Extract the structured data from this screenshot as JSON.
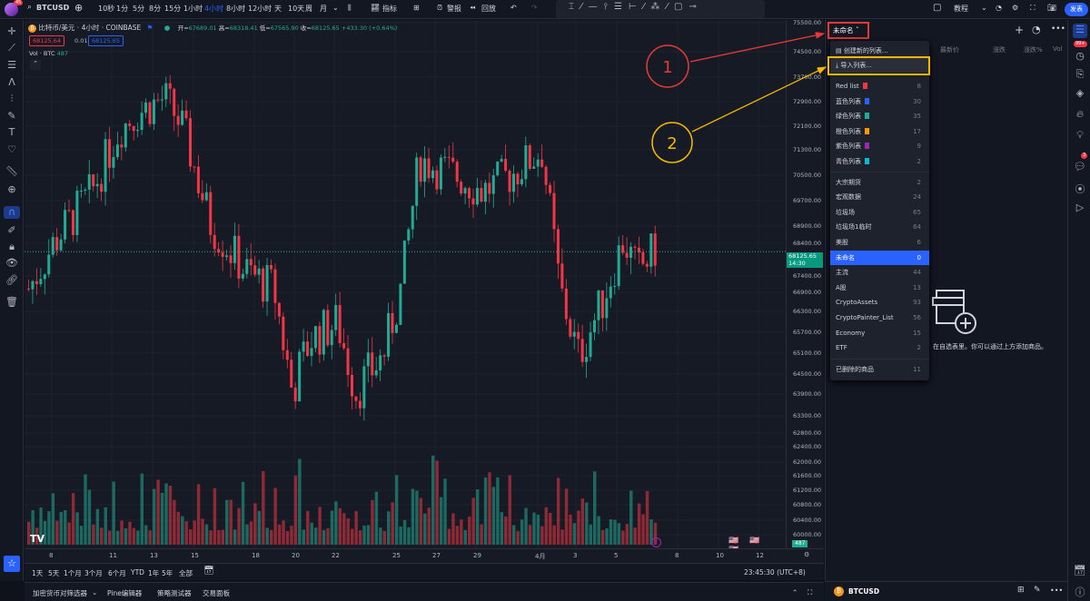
{
  "topbar": {
    "symbol": "BTCUSD",
    "avatar_badge": "45",
    "intervals": [
      "10秒",
      "1分",
      "5分",
      "8分",
      "15分",
      "1小时",
      "4小时",
      "8小时",
      "12小时",
      "天",
      "10天",
      "周",
      "月"
    ],
    "active_interval": "4小时",
    "indicators": "指标",
    "alerts": "警报",
    "replay": "回放",
    "tutorial": "教程",
    "publish": "发表"
  },
  "legend": {
    "title": "比特币/美元 · 4小时 · COINBASE",
    "open_label": "开=",
    "open": "67689.01",
    "high_label": "高=",
    "high": "68318.41",
    "low_label": "低=",
    "low": "67565.90",
    "close_label": "收=",
    "close": "68125.65",
    "change": "+433.30 (+0.64%)",
    "bid": "68125.64",
    "spread": "0.01",
    "ask": "68125.65",
    "vol_label": "Vol · BTC",
    "vol": "487"
  },
  "price_axis": [
    "75500.00",
    "74500.00",
    "73700.00",
    "72900.00",
    "72100.00",
    "71300.00",
    "70500.00",
    "69700.00",
    "68900.00",
    "68400.00",
    "67400.00",
    "66900.00",
    "66300.00",
    "65700.00",
    "65100.00",
    "64500.00",
    "63900.00",
    "63300.00",
    "62800.00",
    "62400.00",
    "62000.00",
    "61600.00",
    "61200.00",
    "60800.00",
    "60400.00",
    "60000.00"
  ],
  "current_price": {
    "price": "68125.65",
    "countdown": "14:30"
  },
  "vol_badge": "487",
  "date_axis": [
    "8",
    "11",
    "13",
    "15",
    "18",
    "20",
    "22",
    "25",
    "27",
    "29",
    "4月",
    "3",
    "5",
    "8",
    "10",
    "12"
  ],
  "time_ranges": [
    "1天",
    "5天",
    "1个月",
    "3个月",
    "6个月",
    "YTD",
    "1年",
    "5年",
    "全部"
  ],
  "clock": "23:45:30 (UTC+8)",
  "bottom_tabs": [
    "加密货币对筛选器",
    "Pine编辑器",
    "策略测试器",
    "交易面板"
  ],
  "watchlist": {
    "name": "未命名",
    "columns": [
      "最新价",
      "涨跌",
      "涨跌%",
      "Vol"
    ],
    "empty_text": "在自选表里。你可以通过上方添加商品。",
    "footer_symbol": "BTCUSD"
  },
  "dropdown": {
    "create": "创建新的列表...",
    "import": "导入列表...",
    "color_lists": [
      {
        "label": "Red list",
        "count": "8",
        "color": "#f23645"
      },
      {
        "label": "蓝色列表",
        "count": "30",
        "color": "#2962ff"
      },
      {
        "label": "绿色列表",
        "count": "35",
        "color": "#22ab94"
      },
      {
        "label": "橙色列表",
        "count": "17",
        "color": "#ff9800"
      },
      {
        "label": "紫色列表",
        "count": "9",
        "color": "#9c27b0"
      },
      {
        "label": "青色列表",
        "count": "2",
        "color": "#00bcd4"
      }
    ],
    "lists": [
      {
        "label": "大宗期货",
        "count": "2"
      },
      {
        "label": "宏观数据",
        "count": "24"
      },
      {
        "label": "垃圾场",
        "count": "65"
      },
      {
        "label": "垃圾场1临时",
        "count": "64"
      },
      {
        "label": "美股",
        "count": "6"
      },
      {
        "label": "未命名",
        "count": "0",
        "active": true
      },
      {
        "label": "主流",
        "count": "44"
      },
      {
        "label": "A股",
        "count": "13"
      },
      {
        "label": "CryptoAssets",
        "count": "93"
      },
      {
        "label": "CryptoPainter_List",
        "count": "56"
      },
      {
        "label": "Economy",
        "count": "15"
      },
      {
        "label": "ETF",
        "count": "2"
      }
    ],
    "deleted": {
      "label": "已删除的商品",
      "count": "11"
    }
  },
  "annotations": {
    "step1": "1",
    "step2": "2",
    "step1_color": "#e53935",
    "step2_color": "#f5b800"
  },
  "badges": {
    "notifications": "99+",
    "chat": "3"
  },
  "colors": {
    "up": "#22ab94",
    "down": "#f23645",
    "accent": "#2962ff"
  }
}
